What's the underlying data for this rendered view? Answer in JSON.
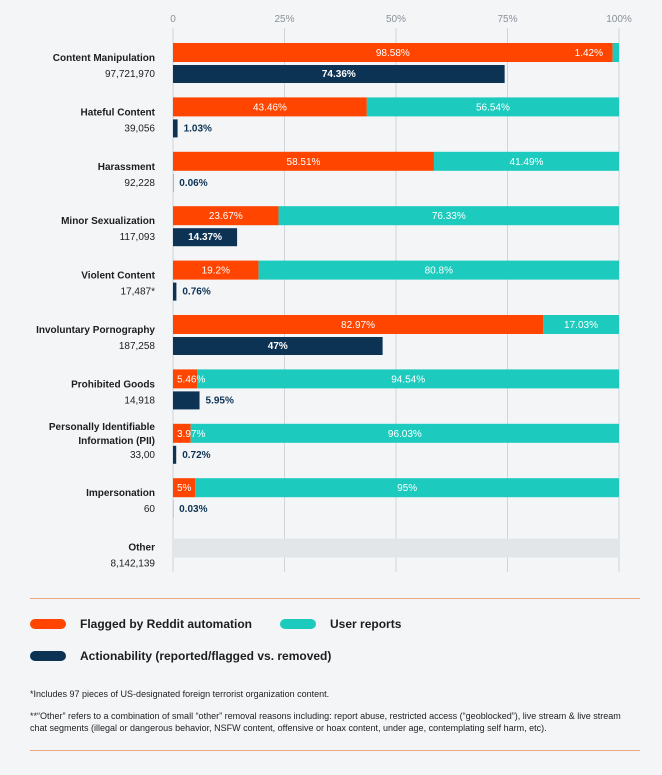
{
  "chart_data": {
    "type": "bar",
    "orientation": "horizontal-stacked",
    "x_ticks": [
      "0",
      "25%",
      "50%",
      "75%",
      "100%"
    ],
    "xlim": [
      0,
      100
    ],
    "categories": [
      {
        "name": "Content Manipulation",
        "count": "97,721,970",
        "automation": 98.58,
        "automation_label": "98.58%",
        "user": 1.42,
        "user_label": "1.42%",
        "actionability": 74.36,
        "actionability_label": "74.36%"
      },
      {
        "name": "Hateful Content",
        "count": "39,056",
        "automation": 43.46,
        "automation_label": "43.46%",
        "user": 56.54,
        "user_label": "56.54%",
        "actionability": 1.03,
        "actionability_label": "1.03%"
      },
      {
        "name": "Harassment",
        "count": "92,228",
        "automation": 58.51,
        "automation_label": "58.51%",
        "user": 41.49,
        "user_label": "41.49%",
        "actionability": 0.06,
        "actionability_label": "0.06%"
      },
      {
        "name": "Minor Sexualization",
        "count": "117,093",
        "automation": 23.67,
        "automation_label": "23.67%",
        "user": 76.33,
        "user_label": "76.33%",
        "actionability": 14.37,
        "actionability_label": "14.37%"
      },
      {
        "name": "Violent Content",
        "count": "17,487*",
        "automation": 19.2,
        "automation_label": "19.2%",
        "user": 80.8,
        "user_label": "80.8%",
        "actionability": 0.76,
        "actionability_label": "0.76%"
      },
      {
        "name": "Involuntary Pornography",
        "count": "187,258",
        "automation": 82.97,
        "automation_label": "82.97%",
        "user": 17.03,
        "user_label": "17.03%",
        "actionability": 47,
        "actionability_label": "47%"
      },
      {
        "name": "Prohibited Goods",
        "count": "14,918",
        "automation": 5.46,
        "automation_label": "5.46%",
        "user": 94.54,
        "user_label": "94.54%",
        "actionability": 5.95,
        "actionability_label": "5.95%"
      },
      {
        "name": "Personally Identifiable|Information (PII)",
        "count": "33,00",
        "automation": 3.97,
        "automation_label": "3.97%",
        "user": 96.03,
        "user_label": "96.03%",
        "actionability": 0.72,
        "actionability_label": "0.72%"
      },
      {
        "name": "Impersonation",
        "count": "60",
        "automation": 5,
        "automation_label": "5%",
        "user": 95,
        "user_label": "95%",
        "actionability": 0.03,
        "actionability_label": "0.03%"
      },
      {
        "name": "Other",
        "count": "8,142,139",
        "automation": null,
        "automation_label": "",
        "user": null,
        "user_label": "",
        "actionability": null,
        "actionability_label": ""
      }
    ],
    "legend": {
      "automation": "Flagged by Reddit automation",
      "user": "User reports",
      "actionability": "Actionability (reported/flagged vs. removed)"
    },
    "colors": {
      "automation": "#ff4500",
      "user": "#1ccbbd",
      "actionability": "#0d3354",
      "other": "#e3e6e8",
      "grid": "#cfd5da",
      "tick": "#8a9199"
    }
  },
  "notes": {
    "note1": "*Includes 97 pieces of US-designated foreign terrorist organization content.",
    "note2": "**“Other” refers to a combination of small “other” removal reasons including: report abuse, restricted access (“geoblocked”), live stream & live stream chat segments (illegal or dangerous behavior, NSFW content, offensive or hoax content, under age, contemplating self harm, etc)."
  }
}
